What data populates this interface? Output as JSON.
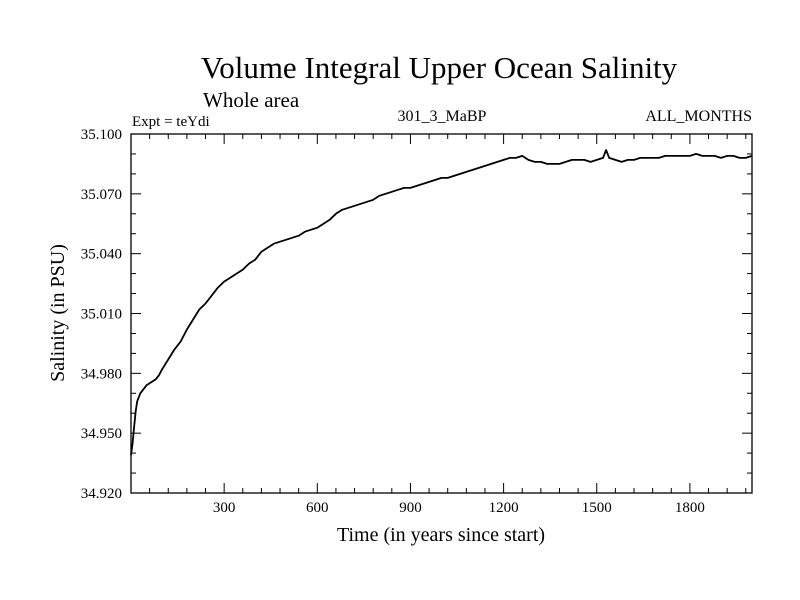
{
  "chart_data": {
    "type": "line",
    "title": "Volume Integral Upper Ocean Salinity",
    "subtitle": "Whole area",
    "experiment_label": "Expt = teYdi",
    "run_label": "301_3_MaBP",
    "months_label": "ALL_MONTHS",
    "xlabel": "Time (in years since start)",
    "ylabel": "Salinity (in PSU)",
    "xlim": [
      0,
      2000
    ],
    "ylim": [
      34.92,
      35.1
    ],
    "xticks": [
      300,
      600,
      900,
      1200,
      1500,
      1800
    ],
    "xtick_labels": [
      "300",
      "600",
      "900",
      "1200",
      "1500",
      "1800"
    ],
    "yticks": [
      34.92,
      34.95,
      34.98,
      35.01,
      35.04,
      35.07,
      35.1
    ],
    "ytick_labels": [
      "34.920",
      "34.950",
      "34.980",
      "35.010",
      "35.040",
      "35.070",
      "35.100"
    ],
    "grid": false,
    "series": [
      {
        "name": "Salinity",
        "color": "#000000",
        "x": [
          0,
          5,
          10,
          15,
          20,
          30,
          40,
          50,
          60,
          70,
          80,
          90,
          100,
          120,
          140,
          160,
          180,
          200,
          220,
          240,
          260,
          280,
          300,
          320,
          340,
          360,
          380,
          400,
          420,
          440,
          460,
          480,
          500,
          520,
          540,
          560,
          580,
          600,
          620,
          640,
          660,
          680,
          700,
          720,
          740,
          760,
          780,
          800,
          820,
          840,
          860,
          880,
          900,
          920,
          940,
          960,
          980,
          1000,
          1020,
          1040,
          1060,
          1080,
          1100,
          1120,
          1140,
          1160,
          1180,
          1200,
          1220,
          1240,
          1260,
          1280,
          1300,
          1320,
          1340,
          1360,
          1380,
          1400,
          1420,
          1440,
          1460,
          1480,
          1500,
          1520,
          1530,
          1540,
          1560,
          1580,
          1600,
          1620,
          1640,
          1660,
          1680,
          1700,
          1720,
          1740,
          1760,
          1780,
          1800,
          1820,
          1840,
          1860,
          1880,
          1900,
          1920,
          1940,
          1960,
          1980,
          2000
        ],
        "values": [
          34.939,
          34.945,
          34.953,
          34.961,
          34.966,
          34.97,
          34.972,
          34.974,
          34.975,
          34.976,
          34.977,
          34.979,
          34.982,
          34.987,
          34.992,
          34.996,
          35.002,
          35.007,
          35.012,
          35.015,
          35.019,
          35.023,
          35.026,
          35.028,
          35.03,
          35.032,
          35.035,
          35.037,
          35.041,
          35.043,
          35.045,
          35.046,
          35.047,
          35.048,
          35.049,
          35.051,
          35.052,
          35.053,
          35.055,
          35.057,
          35.06,
          35.062,
          35.063,
          35.064,
          35.065,
          35.066,
          35.067,
          35.069,
          35.07,
          35.071,
          35.072,
          35.073,
          35.073,
          35.074,
          35.075,
          35.076,
          35.077,
          35.078,
          35.078,
          35.079,
          35.08,
          35.081,
          35.082,
          35.083,
          35.084,
          35.085,
          35.086,
          35.087,
          35.088,
          35.088,
          35.089,
          35.087,
          35.086,
          35.086,
          35.085,
          35.085,
          35.085,
          35.086,
          35.087,
          35.087,
          35.087,
          35.086,
          35.087,
          35.088,
          35.092,
          35.088,
          35.087,
          35.086,
          35.087,
          35.087,
          35.088,
          35.088,
          35.088,
          35.088,
          35.089,
          35.089,
          35.089,
          35.089,
          35.089,
          35.09,
          35.089,
          35.089,
          35.089,
          35.088,
          35.089,
          35.089,
          35.088,
          35.088,
          35.089
        ]
      }
    ]
  }
}
